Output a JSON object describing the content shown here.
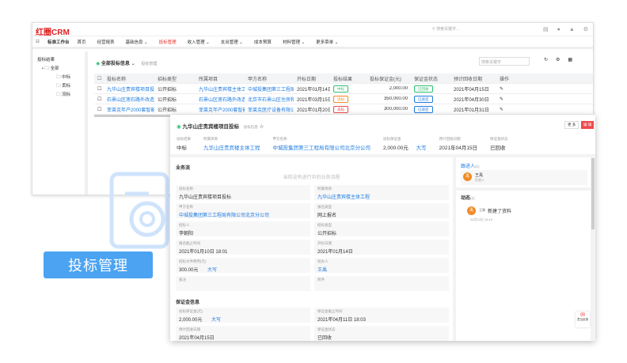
{
  "app": {
    "logo": "红圈CRM",
    "search_placeholder": "搜索关键字..."
  },
  "nav": {
    "workbench": "标准工作台",
    "items": [
      "首页",
      "经营报表",
      "基础信息 ⌄",
      "投标管理",
      "收入管理 ⌄",
      "支出管理 ⌄",
      "成本预算",
      "材料管理 ⌄",
      "更多菜单 ⌄"
    ],
    "active": 3
  },
  "tree": {
    "title": "投标结果",
    "root": "全部",
    "children": [
      "中标",
      "丢标",
      "流标"
    ]
  },
  "list": {
    "view": "全部投标信息",
    "breadcrumb": "投标管理",
    "search_placeholder": "搜索关键字",
    "columns": [
      "投标名称",
      "招标类型",
      "所属项目",
      "甲方名称",
      "开标日期",
      "投标结果",
      "投标保证金(元)",
      "保证金状态",
      "预计回收日期",
      "操作"
    ],
    "rows": [
      [
        "九华山庄贵宾楼项目投标",
        "公开招标",
        "九华山庄贵宾楼主体工程",
        "中城投集团第三工程局有...",
        "2021年01月14日",
        "中标",
        "2,000.00",
        "已回收",
        "2021年04月15日"
      ],
      [
        "石景山区莲石路外改造工程",
        "公开招标",
        "石景山区莲石路外改造工程",
        "北京市石景山区住房和城...",
        "2021年03月15日",
        "流标",
        "350,000.00",
        "已退还",
        "2021年04月30日"
      ],
      [
        "菲莱克年产2000套智能...",
        "公开招标",
        "菲莱克年产2000套智能...",
        "菲莱克医疗设备有限公司",
        "2021年01月20日",
        "丢标",
        "300,000.00",
        "已退还",
        "2021年01月31日"
      ]
    ]
  },
  "colors": {
    "accent": "#1e7be0",
    "brand": "#e02020",
    "win": "#2fbf71",
    "fail": "#f08a24",
    "lose": "#ef4a4a",
    "badge": "#4ba3f2"
  },
  "detail": {
    "title": "九华山庄贵宾楼项目投标",
    "subtitle": "投标信息",
    "buttons": {
      "more": "更 多",
      "edit": "编 辑"
    },
    "summary": [
      {
        "label": "投标结果",
        "value": "中标"
      },
      {
        "label": "所属项目",
        "value": "九华山庄贵宾楼主体工程",
        "link": true
      },
      {
        "label": "甲方名称",
        "value": "中城投集团第三工程局有限公司北京分公司",
        "link": true
      },
      {
        "label": "投标保证金",
        "value": "2,000.00元",
        "extra": "大写"
      },
      {
        "label": "预计回收日期",
        "value": "2021年04月15日"
      },
      {
        "label": "保证金状态",
        "value": "已回收"
      }
    ],
    "flow_title": "业务流",
    "flow_empty": "当前没有进行中的业务流程",
    "fields": [
      {
        "label": "投标名称",
        "value": "九华山庄贵宾楼项目投标"
      },
      {
        "label": "所属项目",
        "value": "九华山庄贵宾楼主体工程",
        "link": true
      },
      {
        "label": "甲方名称",
        "value": "中城投集团第三工程局有限公司北京分公司",
        "link": true
      },
      {
        "label": "报名类型",
        "value": "网上报名"
      },
      {
        "label": "招标人",
        "value": "李朝阳"
      },
      {
        "label": "招标类型",
        "value": "公开招标"
      },
      {
        "label": "报名截止时间",
        "value": "2021年01月10日 18:01"
      },
      {
        "label": "开标日期",
        "value": "2021年01月14日"
      },
      {
        "label": "招标文件费用(元)",
        "value": "300.00元",
        "extra": "大写"
      },
      {
        "label": "经办人",
        "value": "王禹",
        "link": true
      },
      {
        "label": "备注",
        "value": ""
      },
      {
        "label": "附件",
        "value": ""
      }
    ],
    "deposit_title": "保证金信息",
    "deposit": [
      {
        "label": "投标保证金(元)",
        "value": "2,000.00元",
        "extra": "大写"
      },
      {
        "label": "保证金截止时间",
        "value": "2021年04月11日 18:03"
      },
      {
        "label": "预计回收日期",
        "value": "2021年04月15日"
      },
      {
        "label": "保证金状态",
        "value": "已回收"
      }
    ],
    "follow_title": "跟进人",
    "follow_count": "(1)",
    "follower": {
      "avatar": "禹",
      "name": "王禹",
      "role": "负责人"
    },
    "activity_title": "动态",
    "activity_count": "(1)",
    "activity": {
      "avatar": "禹",
      "user": "王禹",
      "text": "新建了资料",
      "time": "04月13日 16:10"
    },
    "feedback": "意见反馈"
  },
  "badge": "投标管理"
}
